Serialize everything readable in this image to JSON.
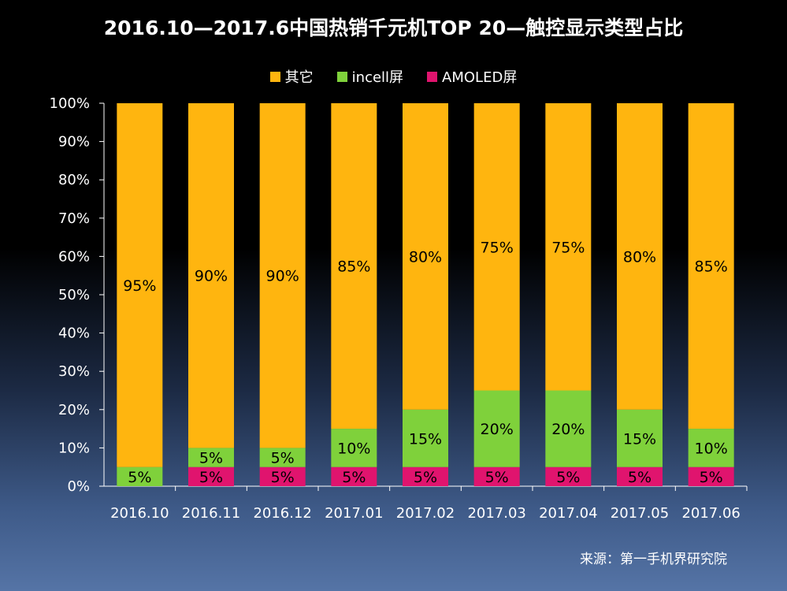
{
  "chart_data": {
    "type": "bar",
    "stacked": true,
    "title": "2016.10—2017.6中国热销千元机TOP 20—触控显示类型占比",
    "categories": [
      "2016.10",
      "2016.11",
      "2016.12",
      "2017.01",
      "2017.02",
      "2017.03",
      "2017.04",
      "2017.05",
      "2017.06"
    ],
    "series": [
      {
        "name": "AMOLED屏",
        "color": "#e0146e",
        "values": [
          0,
          5,
          5,
          5,
          5,
          5,
          5,
          5,
          5
        ],
        "labels": [
          "",
          "5%",
          "5%",
          "5%",
          "5%",
          "5%",
          "5%",
          "5%",
          "5%"
        ]
      },
      {
        "name": "incell屏",
        "color": "#7fd13b",
        "values": [
          5,
          5,
          5,
          10,
          15,
          20,
          20,
          15,
          10
        ],
        "labels": [
          "5%",
          "5%",
          "5%",
          "10%",
          "15%",
          "20%",
          "20%",
          "15%",
          "10%"
        ]
      },
      {
        "name": "其它",
        "color": "#ffb50f",
        "values": [
          95,
          90,
          90,
          85,
          80,
          75,
          75,
          80,
          85
        ],
        "labels": [
          "95%",
          "90%",
          "90%",
          "85%",
          "80%",
          "75%",
          "75%",
          "80%",
          "85%"
        ]
      }
    ],
    "legend": [
      {
        "name": "其它",
        "color": "#ffb50f"
      },
      {
        "name": "incell屏",
        "color": "#7fd13b"
      },
      {
        "name": "AMOLED屏",
        "color": "#e0146e"
      }
    ],
    "yticks": [
      "0%",
      "10%",
      "20%",
      "30%",
      "40%",
      "50%",
      "60%",
      "70%",
      "80%",
      "90%",
      "100%"
    ],
    "ylim": [
      0,
      100
    ],
    "legend_position": "top-center"
  },
  "source": "来源：第一手机界研究院"
}
